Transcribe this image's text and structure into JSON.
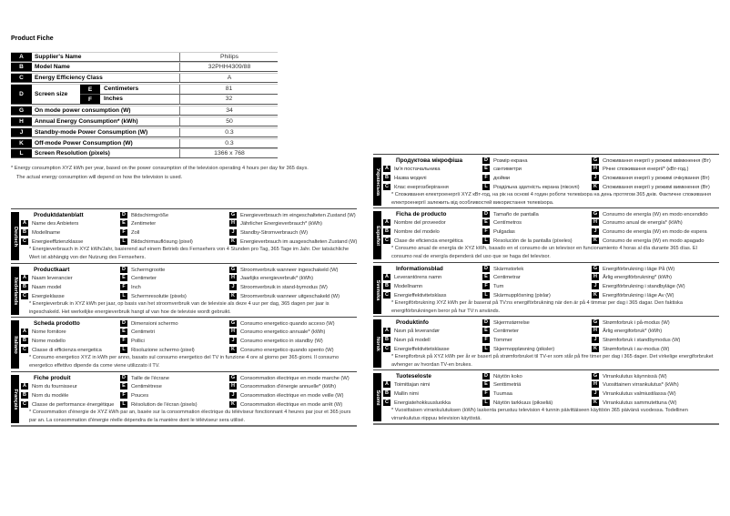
{
  "title": "Product Fiche",
  "table": {
    "rows": [
      {
        "letter": "A",
        "label": "Supplier's Name",
        "value": "Philips"
      },
      {
        "letter": "B",
        "label": "Model Name",
        "value": "32PHH4309/88"
      },
      {
        "letter": "C",
        "label": "Energy Efficiency Class",
        "value": "A"
      },
      {
        "letter": "G",
        "label": "On mode power consumption (W)",
        "value": "34"
      },
      {
        "letter": "H",
        "label": "Annual Energy Consumption* (kWh)",
        "value": "50"
      },
      {
        "letter": "J",
        "label": "Standby-mode Power Consumption (W)",
        "value": "0.3"
      },
      {
        "letter": "K",
        "label": "Off-mode Power Consumption (W)",
        "value": "0.3"
      },
      {
        "letter": "L",
        "label": "Screen Resolution (pixels)",
        "value": "1366 x 768"
      }
    ],
    "screen": {
      "letter": "D",
      "label": "Screen size",
      "sub": [
        {
          "letter": "E",
          "label": "Centimeters",
          "value": "81"
        },
        {
          "letter": "F",
          "label": "Inches",
          "value": "32"
        }
      ]
    }
  },
  "footnote": [
    "* Energy consumption XYZ kWh per year, based on the power consumption of the television operating 4 hours per day for 365 days.",
    "The actual energy consumption will depend on how the television is used."
  ],
  "sections": [
    {
      "lang": "Deutsch",
      "title": "Produktdatenblatt",
      "A": "Name des Anbieters",
      "B": "Modellname",
      "C": "Energieeffizienzklasse",
      "D": "Bildschirmgröße",
      "E": "Zentimeter",
      "F": "Zoll",
      "L": "Bildschirmauflösung (pixel)",
      "G": "Energieverbrauch im eingeschalteten Zustand (W)",
      "H": "Jährlicher Energieverbrauch* (kWh)",
      "J": "Standby-Stromverbrauch (W)",
      "K": "Energieverbrauch im ausgeschalteten Zustand (W)",
      "note": "* Energieverbrauch in XYZ kWh/Jahr, basierend auf einem Betrieb des Fernsehers von 4 Stunden pro Tag, 365 Tage im Jahr. Der tatsächliche Wert ist abhängig von der Nutzung des Fernsehers."
    },
    {
      "lang": "Nederlands",
      "title": "Productkaart",
      "A": "Naam leverancier",
      "B": "Naam model",
      "C": "Energieklasse",
      "D": "Schermgrootte",
      "E": "Centimeter",
      "F": "Inch",
      "L": "Schermresolutie (pixels)",
      "G": "Stroomverbruik wanneer ingeschakeld (W)",
      "H": "Jaarlijks energieverbruik* (kWh)",
      "J": "Stroomverbruik in stand-bymodus (W)",
      "K": "Stroomverbruik wanneer uitgeschakeld (W)",
      "note": "* Energieverbruik in XYZ kWh per jaar, op basis van het stroomverbruik van de televisie als deze 4 uur per dag, 365 dagen per jaar is ingeschakeld. Het werkelijke energieverbruik hangt af van hoe de televisie wordt gebruikt."
    },
    {
      "lang": "Italiano",
      "title": "Scheda prodotto",
      "A": "Nome fornitore",
      "B": "Nome modello",
      "C": "Classe di efficienza energetica",
      "D": "Dimensioni schermo",
      "E": "Centimetri",
      "F": "Pollici",
      "L": "Risoluzione schermo (pixel)",
      "G": "Consumo energetico quando acceso (W)",
      "H": "Consumo energetico annuale* (kWh)",
      "J": "Consumo energetico in standby (W)",
      "K": "Consumo energetico quando spento (W)",
      "note": "* Consumo energetico XYZ in kWh per anno, basato sul consumo energetico del TV in funzione 4 ore al giorno per 365 giorni. Il consumo energetico effettivo dipende da come viene utilizzato il TV."
    },
    {
      "lang": "Français",
      "title": "Fiche produit",
      "A": "Nom du fournisseur",
      "B": "Nom du modèle",
      "C": "Classe de performance énergétique",
      "D": "Taille de l'écrane",
      "E": "Centimètrese",
      "F": "Pouces",
      "L": "Résolution de l'écran (pixels)",
      "G": "Consommation électrique en mode marche (W)",
      "H": "Consommation d'énergie annuelle* (kWh)",
      "J": "Consommation électrique en mode veille (W)",
      "K": "Consommation électrique en mode arrêt (W)",
      "note": "* Consommation d'énergie de XYZ kWh par an, basée sur la consommation électrique du téléviseur fonctionnant 4 heures par jour et 365 jours par an. La consommation d'énergie réelle dépendra de la manière dont le téléviseur sera utilisé."
    },
    {
      "lang": "Українська",
      "title": "Продуктова мікрофіша",
      "A": "Ім'я постачальника",
      "B": "Назва моделі",
      "C": "Клас енергозберігання",
      "D": "Розмір екрана",
      "E": "сантиметри",
      "F": "дюйми",
      "L": "Роздільна здатність екрана (пікселі)",
      "G": "Споживання енергії у режимі ввімкнення (Вт)",
      "H": "Річне споживання енергії* (кВт-год.)",
      "J": "Споживання енергії у режимі очікування (Вт)",
      "K": "Споживання енергії у режимі вимкнення (Вт)",
      "note": "* Споживання електроенергії XYZ кВт-год, на рік на основі 4 годин роботи телевізора на день протягом 365 днів. Фактичне споживання електроенергії залежить від особливостей використання телевізора."
    },
    {
      "lang": "Español",
      "title": "Ficha de producto",
      "A": "Nombre del proveedor",
      "B": "Nombre del modelo",
      "C": "Clase de eficiencia energética",
      "D": "Tamaño de pantalla",
      "E": "Centímetros",
      "F": "Pulgadas",
      "L": "Resolución de la pantalla (píxeles)",
      "G": "Consumo de energía (W) en modo encendido",
      "H": "Consumo anual de energía* (kWh)",
      "J": "Consumo de energía (W) en modo de espera",
      "K": "Consumo de energía (W) en modo apagado",
      "note": "* Consumo anual de energía de XYZ kWh, basado en el consumo de un televisor en funcionamiento 4 horas al día durante 365 días. El consumo real de energía dependerá del uso que se haga del televisor."
    },
    {
      "lang": "Svenska",
      "title": "Informationsblad",
      "A": "Leverantörens namn",
      "B": "Modellnamn",
      "C": "Energieffektivitetsklass",
      "D": "Skärmstorlek",
      "E": "Centimetrar",
      "F": "Tum",
      "L": "Skärmupplösning (pixlar)",
      "G": "Energiförbrukning i läge På (W)",
      "H": "Årlig energiförbrukning* (kWh)",
      "J": "Energiförbrukning i standbyläge (W)",
      "K": "Energiförbrukning i läge Av (W)",
      "note": "* Energiförbrukning XYZ kWh per år baserat på TV:ns energiförbrukning när den är på 4 timmar per dag i 365 dagar. Den faktiska energiförbrukningen beror på hur TV:n används."
    },
    {
      "lang": "Norsk",
      "title": "Produktinfo",
      "A": "Navn på leverandør",
      "B": "Navn på modell",
      "C": "Energieffektivitetsklasse",
      "D": "Skjermstørrelse",
      "E": "Centimeter",
      "F": "Tommer",
      "L": "Skjermoppløsning (piksler)",
      "G": "Strømforbruk i på-modus (W)",
      "H": "Årlig energiforbruk* (kWh)",
      "J": "Strømforbruk i standbymodus (W)",
      "K": "Strømforbruk i av-modus (W)",
      "note": "* Energiforbruk på XYZ kWh per år er basert på strømforbruket til TV-er som står på fire timer per dag i 365 dager. Det virkelige energiforbruket avhenger av hvordan TV-en brukes."
    },
    {
      "lang": "Suomi",
      "title": "Tuoteseloste",
      "A": "Toimittajan nimi",
      "B": "Mallin nimi",
      "C": "Energiatehokkuusluokka",
      "D": "Näytön koko",
      "E": "Senttimetriä",
      "F": "Tuumaa",
      "L": "Näytön tarkkuus (pikseliä)",
      "G": "Virrankulutus käynnissä (W)",
      "H": "Vuosittainen virrankulutus* (kWh)",
      "J": "Virrankulutus valmiustilassa (W)",
      "K": "Virrankulutus sammutettuna (W)",
      "note": "* Vuosittaisen virrankulutuksen (kWh) laskenta perustuu television 4 tunnin päivittäiseen käyttöön 365 päivänä vuodessa. Todellinen virrankulutus riippuu television käytöstä."
    }
  ]
}
